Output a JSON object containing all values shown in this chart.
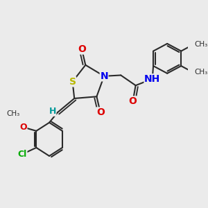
{
  "background_color": "#ebebeb",
  "bond_color": "#2a2a2a",
  "bond_width": 1.5,
  "figsize": [
    3.0,
    3.0
  ],
  "dpi": 100,
  "xlim": [
    0,
    10
  ],
  "ylim": [
    0,
    10
  ],
  "colors": {
    "S": "#b8b800",
    "N": "#0000ee",
    "O": "#dd0000",
    "Cl": "#00aa00",
    "H": "#009999",
    "bond": "#2a2a2a"
  }
}
